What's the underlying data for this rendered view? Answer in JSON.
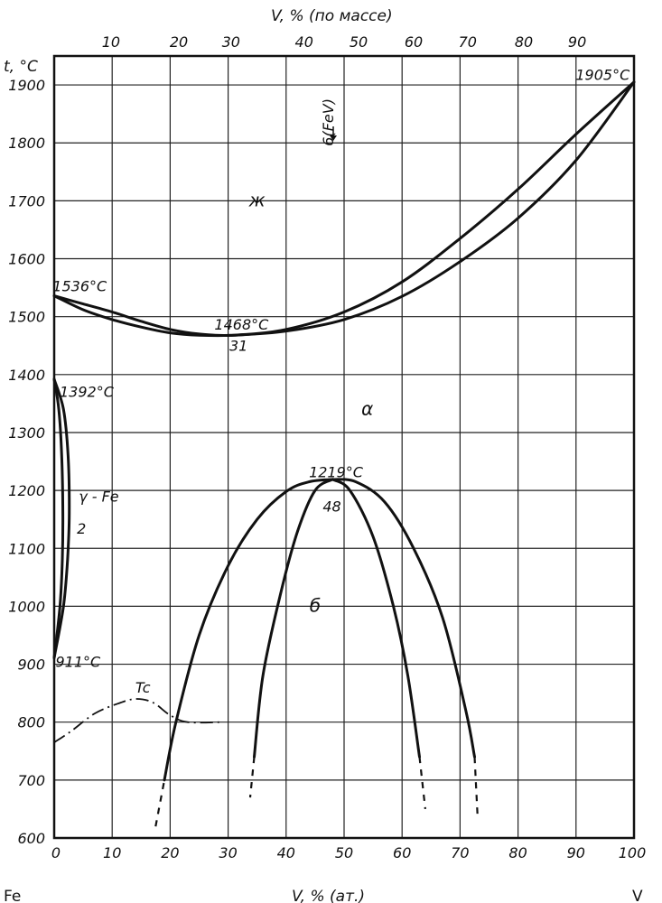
{
  "chart_data": {
    "type": "line",
    "title": "",
    "xlabel": "V, % (ат.)",
    "xlabel_top": "V, % (по массе)",
    "ylabel": "t, °C",
    "xlim": [
      0,
      100
    ],
    "ylim": [
      600,
      1950
    ],
    "grid": true,
    "x_ticks": [
      "0",
      "10",
      "20",
      "30",
      "40",
      "50",
      "60",
      "70",
      "80",
      "90",
      "100"
    ],
    "y_ticks": [
      "600",
      "700",
      "800",
      "900",
      "1000",
      "1100",
      "1200",
      "1300",
      "1400",
      "1500",
      "1600",
      "1700",
      "1800",
      "1900"
    ],
    "top_ticks": [
      {
        "label": "10",
        "x": 9.8
      },
      {
        "label": "20",
        "x": 21.5
      },
      {
        "label": "30",
        "x": 30.5
      },
      {
        "label": "40",
        "x": 43.1
      },
      {
        "label": "50",
        "x": 52.5
      },
      {
        "label": "60",
        "x": 62.0
      },
      {
        "label": "70",
        "x": 71.3
      },
      {
        "label": "80",
        "x": 81.0
      },
      {
        "label": "90",
        "x": 90.2
      }
    ],
    "endpoint_labels": {
      "left": "Fe",
      "right": "V"
    },
    "series": [
      {
        "style": "solid",
        "points": [
          [
            0,
            1536
          ],
          [
            5,
            1522
          ],
          [
            10,
            1508
          ],
          [
            15,
            1492
          ],
          [
            20,
            1478
          ],
          [
            25,
            1470
          ],
          [
            31,
            1468
          ],
          [
            40,
            1478
          ],
          [
            50,
            1508
          ],
          [
            60,
            1560
          ],
          [
            70,
            1635
          ],
          [
            80,
            1720
          ],
          [
            90,
            1815
          ],
          [
            100,
            1905
          ]
        ]
      },
      {
        "style": "solid",
        "points": [
          [
            0,
            1536
          ],
          [
            5,
            1512
          ],
          [
            10,
            1495
          ],
          [
            15,
            1482
          ],
          [
            20,
            1472
          ],
          [
            25,
            1468
          ],
          [
            31,
            1468
          ],
          [
            40,
            1475
          ],
          [
            50,
            1495
          ],
          [
            60,
            1535
          ],
          [
            70,
            1595
          ],
          [
            80,
            1670
          ],
          [
            90,
            1770
          ],
          [
            100,
            1905
          ]
        ]
      },
      {
        "style": "solid",
        "points": [
          [
            0,
            1392
          ],
          [
            0.8,
            1340
          ],
          [
            1.3,
            1260
          ],
          [
            1.5,
            1160
          ],
          [
            1.4,
            1080
          ],
          [
            1.0,
            1000
          ],
          [
            0,
            911
          ]
        ]
      },
      {
        "style": "solid",
        "points": [
          [
            0,
            1392
          ],
          [
            1.6,
            1340
          ],
          [
            2.4,
            1260
          ],
          [
            2.6,
            1160
          ],
          [
            2.3,
            1080
          ],
          [
            1.6,
            1000
          ],
          [
            0,
            911
          ]
        ]
      },
      {
        "style": "solid",
        "points": [
          [
            19,
            700
          ],
          [
            21,
            800
          ],
          [
            25,
            950
          ],
          [
            30,
            1070
          ],
          [
            35,
            1150
          ],
          [
            40,
            1198
          ],
          [
            44,
            1215
          ],
          [
            48,
            1219
          ]
        ]
      },
      {
        "style": "solid",
        "points": [
          [
            48,
            1219
          ],
          [
            52,
            1215
          ],
          [
            57,
            1180
          ],
          [
            62,
            1100
          ],
          [
            67,
            980
          ],
          [
            71,
            820
          ],
          [
            72.5,
            740
          ]
        ]
      },
      {
        "style": "solid",
        "points": [
          [
            34.5,
            740
          ],
          [
            36,
            880
          ],
          [
            39,
            1020
          ],
          [
            42,
            1130
          ],
          [
            45,
            1200
          ],
          [
            48,
            1219
          ]
        ]
      },
      {
        "style": "solid",
        "points": [
          [
            48,
            1219
          ],
          [
            51,
            1200
          ],
          [
            55,
            1120
          ],
          [
            58.5,
            1000
          ],
          [
            61,
            880
          ],
          [
            63,
            740
          ]
        ]
      },
      {
        "style": "dashed",
        "points": [
          [
            17.5,
            620
          ],
          [
            19,
            700
          ]
        ]
      },
      {
        "style": "dashed",
        "points": [
          [
            34.5,
            740
          ],
          [
            33.8,
            670
          ]
        ]
      },
      {
        "style": "dashed",
        "points": [
          [
            63,
            740
          ],
          [
            64,
            650
          ]
        ]
      },
      {
        "style": "dashed",
        "points": [
          [
            72.5,
            740
          ],
          [
            73,
            640
          ]
        ]
      },
      {
        "style": "dashdot",
        "points": [
          [
            0,
            765
          ],
          [
            3,
            785
          ],
          [
            7,
            815
          ],
          [
            11,
            832
          ],
          [
            14,
            840
          ],
          [
            17,
            834
          ],
          [
            20,
            812
          ],
          [
            23,
            800
          ],
          [
            29,
            800
          ]
        ]
      }
    ],
    "annotations": [
      {
        "text": "1905°C",
        "x": 94.6,
        "y": 1918
      },
      {
        "text": "6(FeV)",
        "x": 48.1,
        "y": 1845
      },
      {
        "text": "ж",
        "x": 35,
        "y": 1700
      },
      {
        "text": "1536°C",
        "x": 4.4,
        "y": 1553
      },
      {
        "text": "1468°C",
        "x": 32.3,
        "y": 1487
      },
      {
        "text": "31",
        "x": 31.8,
        "y": 1450
      },
      {
        "text": "1392°C",
        "x": 5.6,
        "y": 1371
      },
      {
        "text": "α",
        "x": 54,
        "y": 1340
      },
      {
        "text": "1219°C",
        "x": 48.6,
        "y": 1232
      },
      {
        "text": "48",
        "x": 47.9,
        "y": 1173
      },
      {
        "text": "γ - Fe",
        "x": 7.7,
        "y": 1190
      },
      {
        "text": "2",
        "x": 4.7,
        "y": 1135
      },
      {
        "text": "б",
        "x": 45,
        "y": 1000
      },
      {
        "text": "911°C",
        "x": 4.1,
        "y": 905
      },
      {
        "text": "Tc",
        "x": 15.3,
        "y": 860
      }
    ]
  }
}
